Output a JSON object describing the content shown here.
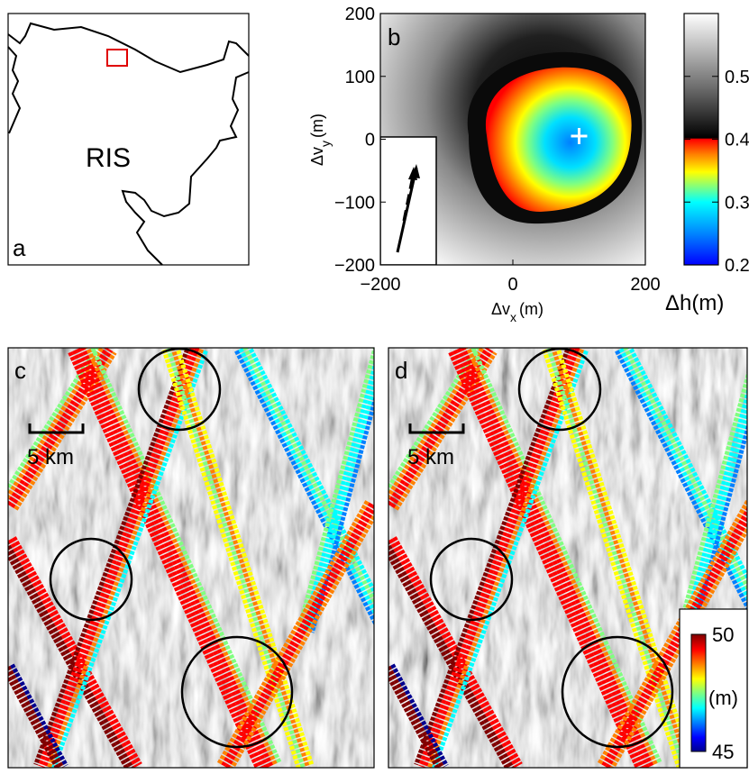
{
  "colors": {
    "outline": "#000000",
    "box": "#e00000"
  },
  "colormaps": {
    "jet": [
      "#00008f",
      "#0000ff",
      "#0080ff",
      "#00ffff",
      "#80ff80",
      "#ffff00",
      "#ff8000",
      "#ff0000",
      "#800000"
    ],
    "gray": [
      "#000000",
      "#5a5a5a",
      "#a8a8a8",
      "#dcdcdc",
      "#ffffff"
    ]
  },
  "panel_a": {
    "letter": "a",
    "region_label": "RIS"
  },
  "chart_data": [
    {
      "type": "heatmap",
      "panel": "b",
      "letter": "b",
      "xlabel": "Δv_x (m)",
      "xlabel_main": "Δv",
      "xlabel_sub": "x",
      "xlabel_unit": "(m)",
      "ylabel_main": "Δv",
      "ylabel_sub": "y",
      "ylabel_unit": "(m)",
      "xlim": [
        -200,
        200
      ],
      "ylim": [
        -200,
        200
      ],
      "xticks": [
        "−200",
        "0",
        "200"
      ],
      "yticks": [
        "200",
        "100",
        "0",
        "−100",
        "−200"
      ],
      "minimum": {
        "x": 100,
        "y": 5
      },
      "colorbar": {
        "label": "Δh(m)",
        "range": [
          0.2,
          0.6
        ],
        "ticks": [
          "0.5",
          "0.4",
          "0.3",
          "0.2"
        ],
        "tick_values": [
          0.5,
          0.4,
          0.3,
          0.2
        ]
      }
    },
    {
      "type": "scatter",
      "panel": "c",
      "letter": "c",
      "scale_label": "5 km"
    },
    {
      "type": "scatter",
      "panel": "d",
      "letter": "d",
      "scale_label": "5 km",
      "colorbar": {
        "unit": "(m)",
        "range": [
          45,
          50
        ],
        "ticks": [
          "50",
          "45"
        ],
        "tick_values": [
          50,
          45
        ]
      }
    }
  ]
}
